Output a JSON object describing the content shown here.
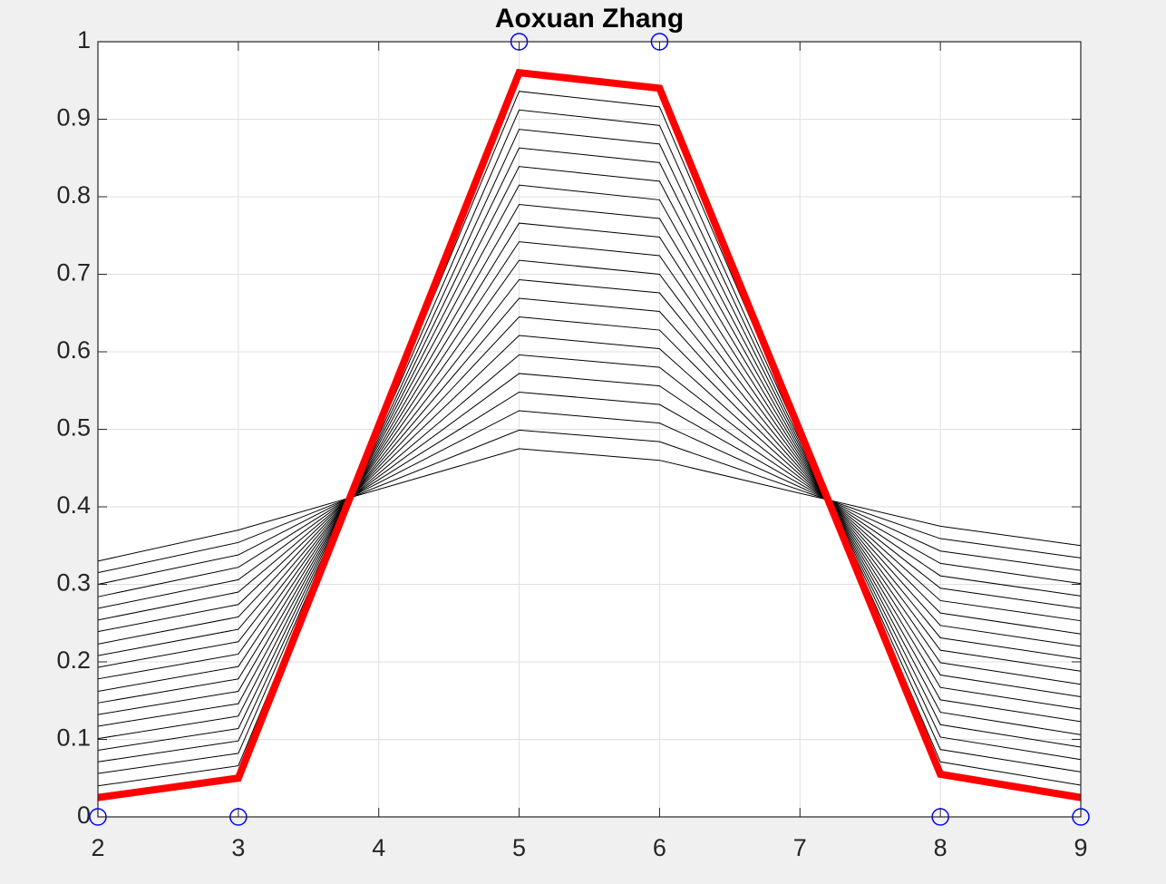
{
  "chart_data": {
    "type": "line",
    "title": "Aoxuan Zhang",
    "x": [
      2,
      3,
      5,
      6,
      8,
      9
    ],
    "xlim": [
      2,
      9
    ],
    "xticks": [
      2,
      3,
      4,
      5,
      6,
      7,
      8,
      9
    ],
    "ylim": [
      0,
      1
    ],
    "yticks": [
      0,
      0.1,
      0.2,
      0.3,
      0.4,
      0.5,
      0.6,
      0.7,
      0.8,
      0.9,
      1
    ],
    "grid": true,
    "series": [
      {
        "color": "#000000",
        "line_width": 1,
        "values": [
          0.33,
          0.37,
          0.475,
          0.46,
          0.375,
          0.35
        ]
      },
      {
        "color": "#000000",
        "line_width": 1,
        "values": [
          0.315,
          0.354,
          0.499,
          0.484,
          0.359,
          0.334
        ]
      },
      {
        "color": "#000000",
        "line_width": 1,
        "values": [
          0.3,
          0.338,
          0.524,
          0.508,
          0.343,
          0.318
        ]
      },
      {
        "color": "#000000",
        "line_width": 1,
        "values": [
          0.284,
          0.322,
          0.548,
          0.532,
          0.327,
          0.301
        ]
      },
      {
        "color": "#000000",
        "line_width": 1,
        "values": [
          0.269,
          0.306,
          0.572,
          0.556,
          0.311,
          0.285
        ]
      },
      {
        "color": "#000000",
        "line_width": 1,
        "values": [
          0.254,
          0.29,
          0.596,
          0.58,
          0.295,
          0.269
        ]
      },
      {
        "color": "#000000",
        "line_width": 1,
        "values": [
          0.239,
          0.274,
          0.621,
          0.604,
          0.279,
          0.253
        ]
      },
      {
        "color": "#000000",
        "line_width": 1,
        "values": [
          0.223,
          0.258,
          0.645,
          0.628,
          0.263,
          0.236
        ]
      },
      {
        "color": "#000000",
        "line_width": 1,
        "values": [
          0.208,
          0.242,
          0.669,
          0.652,
          0.247,
          0.22
        ]
      },
      {
        "color": "#000000",
        "line_width": 1,
        "values": [
          0.193,
          0.226,
          0.693,
          0.676,
          0.231,
          0.204
        ]
      },
      {
        "color": "#000000",
        "line_width": 1,
        "values": [
          0.178,
          0.21,
          0.718,
          0.7,
          0.215,
          0.188
        ]
      },
      {
        "color": "#000000",
        "line_width": 1,
        "values": [
          0.162,
          0.194,
          0.742,
          0.724,
          0.199,
          0.171
        ]
      },
      {
        "color": "#000000",
        "line_width": 1,
        "values": [
          0.147,
          0.178,
          0.766,
          0.748,
          0.183,
          0.155
        ]
      },
      {
        "color": "#000000",
        "line_width": 1,
        "values": [
          0.132,
          0.162,
          0.79,
          0.772,
          0.167,
          0.139
        ]
      },
      {
        "color": "#000000",
        "line_width": 1,
        "values": [
          0.117,
          0.146,
          0.815,
          0.796,
          0.151,
          0.123
        ]
      },
      {
        "color": "#000000",
        "line_width": 1,
        "values": [
          0.101,
          0.13,
          0.839,
          0.82,
          0.135,
          0.106
        ]
      },
      {
        "color": "#000000",
        "line_width": 1,
        "values": [
          0.086,
          0.114,
          0.863,
          0.844,
          0.119,
          0.09
        ]
      },
      {
        "color": "#000000",
        "line_width": 1,
        "values": [
          0.071,
          0.098,
          0.887,
          0.868,
          0.103,
          0.074
        ]
      },
      {
        "color": "#000000",
        "line_width": 1,
        "values": [
          0.056,
          0.082,
          0.912,
          0.892,
          0.087,
          0.058
        ]
      },
      {
        "color": "#000000",
        "line_width": 1,
        "values": [
          0.04,
          0.066,
          0.936,
          0.916,
          0.071,
          0.041
        ]
      },
      {
        "color": "#ff0000",
        "line_width": 8,
        "values": [
          0.025,
          0.05,
          0.96,
          0.94,
          0.055,
          0.025
        ]
      },
      {
        "color": "#0000ff",
        "marker": "circle",
        "line_width": 0,
        "values": [
          0,
          0,
          1,
          1,
          0,
          0
        ]
      }
    ]
  }
}
